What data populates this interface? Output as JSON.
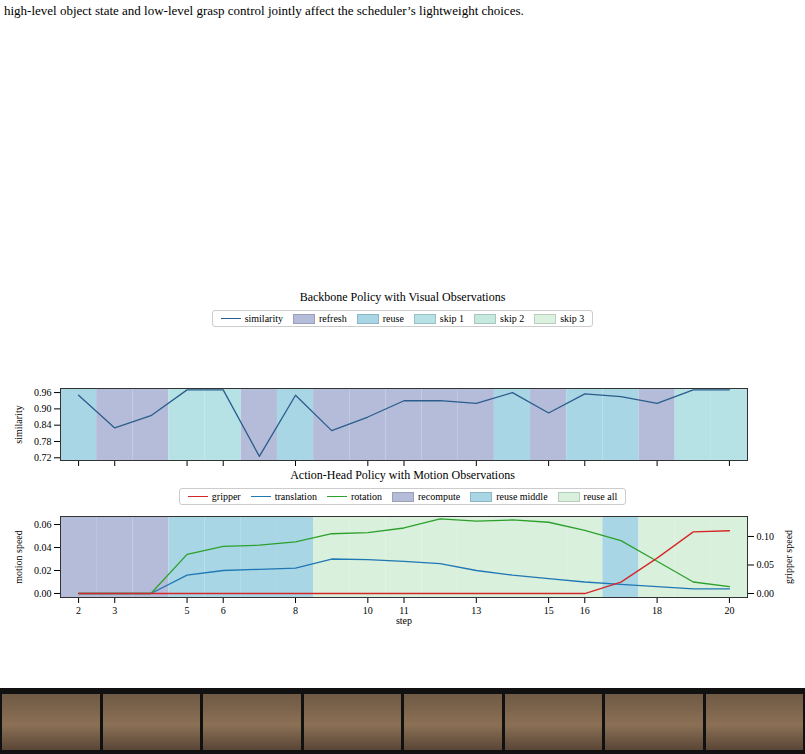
{
  "caption": "high-level object state and low-level grasp control jointly affect the scheduler’s lightweight choices.",
  "chart_data": [
    {
      "type": "line",
      "title": "Backbone Policy with Visual Observations",
      "x": [
        2,
        3,
        4,
        5,
        6,
        7,
        8,
        9,
        10,
        11,
        12,
        13,
        14,
        15,
        16,
        17,
        18,
        19,
        20
      ],
      "series": [
        {
          "name": "similarity",
          "color": "#2b5d8c",
          "values": [
            0.95,
            0.83,
            0.875,
            0.97,
            0.97,
            0.725,
            0.95,
            0.82,
            0.87,
            0.93,
            0.93,
            0.92,
            0.96,
            0.885,
            0.955,
            0.945,
            0.92,
            0.97,
            0.97
          ]
        }
      ],
      "phases": [
        {
          "name": "refresh",
          "color": "#b4bcd9"
        },
        {
          "name": "reuse",
          "color": "#a9d6e5"
        },
        {
          "name": "skip 1",
          "color": "#b6e2e6"
        },
        {
          "name": "skip 2",
          "color": "#c6e9df"
        },
        {
          "name": "skip 3",
          "color": "#dcf2e0"
        }
      ],
      "phase_by_step": [
        "reuse",
        "refresh",
        "refresh",
        "skip 1",
        "skip 1",
        "refresh",
        "reuse",
        "refresh",
        "refresh",
        "refresh",
        "refresh",
        "refresh",
        "reuse",
        "refresh",
        "reuse",
        "reuse",
        "refresh",
        "skip 1",
        "skip 1"
      ],
      "y_label": "similarity",
      "xlim": [
        1.5,
        20.5
      ],
      "xticks": [
        2,
        3,
        5,
        6,
        8,
        10,
        11,
        13,
        15,
        16,
        18,
        20
      ],
      "ylim": [
        0.71,
        0.975
      ],
      "yticks": [
        0.72,
        0.78,
        0.84,
        {
          "value": 0.9,
          "label": "0.90"
        },
        0.96
      ],
      "tick_labels": "y",
      "legend": "top"
    },
    {
      "type": "line",
      "title": "Action-Head Policy with Motion Observations",
      "x": [
        2,
        3,
        4,
        5,
        6,
        7,
        8,
        9,
        10,
        11,
        12,
        13,
        14,
        15,
        16,
        17,
        18,
        19,
        20
      ],
      "series": [
        {
          "name": "gripper",
          "color": "#d62728",
          "axis": "y2",
          "values": [
            0,
            0,
            0,
            0,
            0,
            0,
            0,
            0,
            0,
            0,
            0,
            0,
            0,
            0,
            0,
            0.02,
            0.062,
            0.108,
            0.11
          ]
        },
        {
          "name": "translation",
          "color": "#1f77b4",
          "values": [
            0,
            0,
            0,
            0.016,
            0.02,
            0.021,
            0.022,
            0.03,
            0.0295,
            0.028,
            0.026,
            0.02,
            0.016,
            0.013,
            0.01,
            0.008,
            0.006,
            0.004,
            0.004
          ]
        },
        {
          "name": "rotation",
          "color": "#2ca02c",
          "values": [
            0,
            0,
            0,
            0.034,
            0.041,
            0.042,
            0.045,
            0.052,
            0.053,
            0.057,
            0.065,
            0.063,
            0.064,
            0.062,
            0.055,
            0.046,
            0.028,
            0.01,
            0.006
          ]
        }
      ],
      "phases": [
        {
          "name": "recompute",
          "color": "#b4bcd9"
        },
        {
          "name": "reuse middle",
          "color": "#a9d6e5"
        },
        {
          "name": "reuse all",
          "color": "#d9f0dc"
        }
      ],
      "phase_by_step": [
        "recompute",
        "recompute",
        "recompute",
        "reuse middle",
        "reuse middle",
        "reuse middle",
        "reuse middle",
        "reuse all",
        "reuse all",
        "reuse all",
        "reuse all",
        "reuse all",
        "reuse all",
        "reuse all",
        "reuse all",
        "reuse middle",
        "reuse all",
        "reuse all",
        "reuse all"
      ],
      "x_label": "step",
      "y_label": "motion speed",
      "y2_label": "gripper speed",
      "xlim": [
        1.5,
        20.5
      ],
      "xticks": [
        2,
        3,
        5,
        6,
        8,
        10,
        11,
        13,
        15,
        16,
        18,
        20
      ],
      "ylim": [
        -0.0035,
        0.067
      ],
      "yticks": [
        {
          "value": 0,
          "label": "0.00"
        },
        0.02,
        0.04,
        0.06
      ],
      "y2lim": [
        -0.007,
        0.135
      ],
      "y2ticks": [
        {
          "value": 0,
          "label": "0.00"
        },
        0.05,
        {
          "value": 0.1,
          "label": "0.10"
        }
      ],
      "legend": "top"
    }
  ]
}
